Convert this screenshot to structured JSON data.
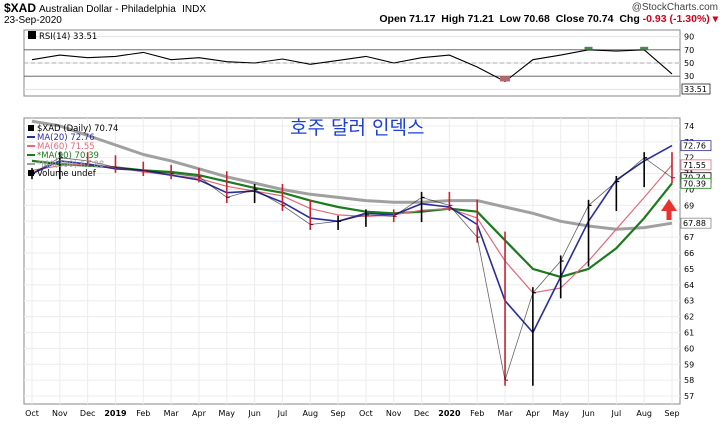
{
  "header": {
    "symbol": "$XAD",
    "name": "Australian Dollar - Philadelphia",
    "exchange": "INDX",
    "date": "23-Sep-2020",
    "credit": "@StockCharts.com",
    "open_label": "Open",
    "open": "71.17",
    "high_label": "High",
    "high": "71.21",
    "low_label": "Low",
    "low": "70.68",
    "close_label": "Close",
    "close": "70.74",
    "chg_label": "Chg",
    "chg": "-0.93 (-1.30%)"
  },
  "rsi_panel": {
    "label": "RSI(14) 33.51",
    "last_value": "33.51",
    "ticks": [
      "90",
      "70",
      "50",
      "30",
      "10"
    ],
    "overbought": 70,
    "oversold": 30
  },
  "price_panel": {
    "overlay_title": "호주 달러 인덱스",
    "legend": [
      {
        "text": "$XAD (Daily) 70.74",
        "color": "#000000",
        "marker": "square"
      },
      {
        "text": "MA(20) 72.76",
        "color": "#2a2d9c",
        "marker": "dash"
      },
      {
        "text": "MA(60) 71.55",
        "color": "#e36a7a",
        "marker": "dash"
      },
      {
        "text": "*MA(90) 70.39",
        "color": "#1e7a1e",
        "marker": "dash"
      },
      {
        "text": "*MA(300) 67.88",
        "color": "#a0a0a0",
        "marker": "dash"
      },
      {
        "text": "Volume undef",
        "color": "#000000",
        "marker": "square"
      }
    ],
    "right_tags": [
      {
        "text": "72.76",
        "value": 72.76,
        "color": "#2a2d9c"
      },
      {
        "text": "71.55",
        "value": 71.55,
        "color": "#e36a7a"
      },
      {
        "text": "70.74",
        "value": 70.74,
        "color": "#000000"
      },
      {
        "text": "70.39",
        "value": 70.39,
        "color": "#1e7a1e"
      },
      {
        "text": "67.88",
        "value": 67.88,
        "color": "#888888"
      }
    ]
  },
  "x_axis": {
    "labels": [
      "Oct",
      "Nov",
      "Dec",
      "2019",
      "Feb",
      "Mar",
      "Apr",
      "May",
      "Jun",
      "Jul",
      "Aug",
      "Sep",
      "Oct",
      "Nov",
      "Dec",
      "2020",
      "Feb",
      "Mar",
      "Apr",
      "May",
      "Jun",
      "Jul",
      "Aug",
      "Sep"
    ],
    "bold": [
      "2019",
      "2020"
    ]
  },
  "chart_data": {
    "type": "line",
    "title": "$XAD Australian Dollar - Philadelphia INDX",
    "ylim": [
      56.5,
      74.5
    ],
    "yticks": [
      57,
      58,
      59,
      60,
      61,
      62,
      63,
      64,
      65,
      66,
      67,
      68,
      69,
      70,
      71,
      72,
      73,
      74
    ],
    "x": [
      "2018-10",
      "2018-11",
      "2018-12",
      "2019-01",
      "2019-02",
      "2019-03",
      "2019-04",
      "2019-05",
      "2019-06",
      "2019-07",
      "2019-08",
      "2019-09",
      "2019-10",
      "2019-11",
      "2019-12",
      "2020-01",
      "2020-02",
      "2020-03",
      "2020-04",
      "2020-05",
      "2020-06",
      "2020-07",
      "2020-08",
      "2020-09"
    ],
    "series": [
      {
        "name": "$XAD (Daily)",
        "color": "#000000",
        "values": [
          71.0,
          72.0,
          71.8,
          71.4,
          71.2,
          71.0,
          70.8,
          69.5,
          70.0,
          69.0,
          67.8,
          68.0,
          68.4,
          68.3,
          69.5,
          69.0,
          67.0,
          58.0,
          63.5,
          65.5,
          69.0,
          70.5,
          72.0,
          70.74
        ]
      },
      {
        "name": "MA(20)",
        "color": "#2a2d9c",
        "values": [
          71.0,
          71.8,
          71.6,
          71.3,
          71.2,
          70.9,
          70.6,
          69.8,
          69.9,
          69.2,
          68.2,
          68.0,
          68.5,
          68.4,
          69.1,
          68.9,
          67.8,
          63.0,
          61.0,
          64.5,
          68.0,
          70.6,
          71.8,
          72.76
        ]
      },
      {
        "name": "MA(60)",
        "color": "#e36a7a",
        "values": [
          71.2,
          71.5,
          71.6,
          71.4,
          71.1,
          70.9,
          70.7,
          70.2,
          69.9,
          69.6,
          68.8,
          68.4,
          68.3,
          68.4,
          68.7,
          68.8,
          68.2,
          65.5,
          63.5,
          63.8,
          65.5,
          67.5,
          69.5,
          71.55
        ]
      },
      {
        "name": "MA(90)",
        "color": "#1e7a1e",
        "values": [
          71.8,
          71.6,
          71.5,
          71.4,
          71.2,
          71.1,
          70.9,
          70.5,
          70.1,
          69.8,
          69.3,
          68.9,
          68.6,
          68.5,
          68.6,
          68.8,
          68.6,
          66.8,
          65.0,
          64.5,
          65.0,
          66.3,
          68.2,
          70.39
        ]
      },
      {
        "name": "MA(300)",
        "color": "#a0a0a0",
        "values": [
          74.3,
          74.0,
          73.4,
          72.8,
          72.2,
          71.8,
          71.3,
          70.8,
          70.4,
          70.0,
          69.7,
          69.5,
          69.3,
          69.2,
          69.2,
          69.3,
          69.3,
          68.9,
          68.5,
          68.0,
          67.7,
          67.5,
          67.6,
          67.88
        ]
      }
    ],
    "rsi_series": {
      "name": "RSI(14)",
      "values": [
        55,
        62,
        58,
        60,
        66,
        55,
        58,
        52,
        50,
        56,
        48,
        54,
        60,
        50,
        58,
        62,
        44,
        22,
        55,
        62,
        70,
        68,
        70,
        33.51
      ]
    }
  }
}
